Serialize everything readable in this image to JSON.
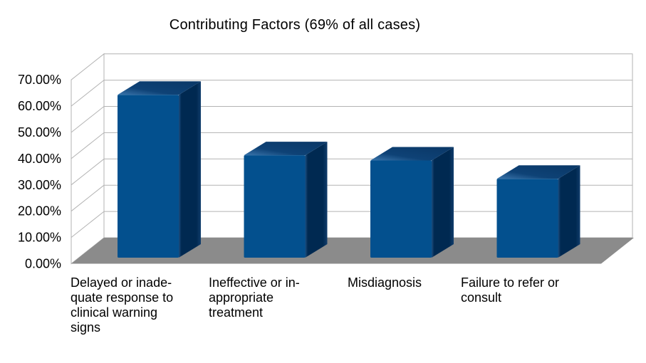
{
  "chart_data": {
    "type": "bar",
    "style": "3d-column",
    "title": "Contributing Factors (69% of all cases)",
    "categories": [
      "Delayed or inadequate response to clinical warning signs",
      "Ineffective or inappropriate treatment",
      "Misdiagnosis",
      "Failure to refer or consult"
    ],
    "category_display_lines": [
      [
        "Delayed or inade-",
        "quate response to",
        "clinical warning",
        "signs"
      ],
      [
        "Ineffective or in-",
        "appropriate",
        "treatment"
      ],
      [
        "Misdiagnosis"
      ],
      [
        "Failure to refer or",
        "consult"
      ]
    ],
    "values": [
      62,
      39,
      37,
      30
    ],
    "unit": "%",
    "xlabel": "",
    "ylabel": "",
    "ylim": [
      0,
      70
    ],
    "ytick_step": 10,
    "yticks": [
      "0.00%",
      "10.00%",
      "20.00%",
      "30.00%",
      "40.00%",
      "50.00%",
      "60.00%",
      "70.00%"
    ],
    "grid": true,
    "legend": "none",
    "colors": {
      "bar_front": "#03508e",
      "bar_side_dark": "#002951",
      "bar_side_edge": "#1d4e80",
      "bar_side_back": "#113d6c",
      "bar_top_mid": "#0e4276",
      "bar_top_back": "#0a3766",
      "bar_top_highlight": "#3a75ac",
      "floor": "#8b8b8b",
      "wall_fill": "#ffffff",
      "wall_border": "#b3b3b3",
      "text": "#000000",
      "background": "#ffffff"
    }
  }
}
